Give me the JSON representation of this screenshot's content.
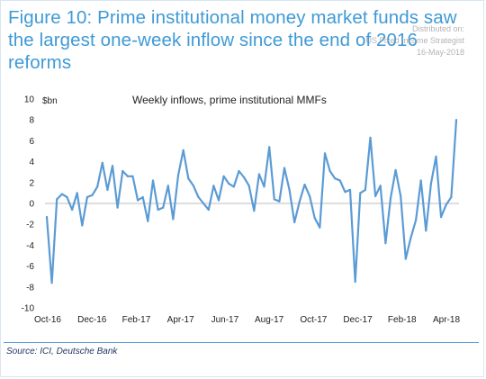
{
  "title": "Figure 10: Prime institutional money market funds saw the largest one-week inflow since the end of 2016 reforms",
  "watermark": [
    "Distributed on:",
    "US Fixed Income Strategist",
    "16-May-2018"
  ],
  "source": "Source: ICI, Deutsche Bank",
  "colors": {
    "title": "#3f9ad6",
    "line": "#5b9bd5",
    "rule": "#5b9bd5",
    "source": "#1f3864"
  },
  "chart_data": {
    "type": "line",
    "title": "Weekly inflows, prime institutional MMFs",
    "ylabel": "$bn",
    "xlabel": "",
    "ylim": [
      -10,
      10
    ],
    "yticks": [
      10,
      8,
      6,
      4,
      2,
      0,
      -2,
      -4,
      -6,
      -8,
      -10
    ],
    "xtick_labels": [
      "Oct-16",
      "Dec-16",
      "Feb-17",
      "Apr-17",
      "Jun-17",
      "Aug-17",
      "Oct-17",
      "Dec-17",
      "Feb-18",
      "Apr-18"
    ],
    "grid": false,
    "legend": "none",
    "series": [
      {
        "values": [
          -1.3,
          -7.6,
          0.4,
          0.9,
          0.6,
          -0.6,
          1.0,
          -2.1,
          0.6,
          0.8,
          1.6,
          3.9,
          1.3,
          3.6,
          -0.4,
          3.1,
          2.6,
          2.6,
          0.3,
          0.6,
          -1.7,
          2.2,
          -0.6,
          -0.4,
          1.7,
          -1.5,
          2.7,
          5.1,
          2.4,
          1.7,
          0.6,
          0.0,
          -0.6,
          1.7,
          0.3,
          2.6,
          1.9,
          1.6,
          3.1,
          2.5,
          1.7,
          -0.7,
          2.8,
          1.6,
          5.4,
          0.4,
          0.2,
          3.4,
          1.3,
          -1.8,
          0.2,
          1.8,
          0.7,
          -1.4,
          -2.3,
          4.8,
          3.1,
          2.4,
          2.2,
          1.1,
          1.3,
          -7.5,
          1.0,
          1.3,
          6.3,
          0.7,
          1.7,
          -3.8,
          0.5,
          3.2,
          0.7,
          -5.3,
          -3.3,
          -1.6,
          2.2,
          -2.6,
          1.9,
          4.5,
          -1.3,
          -0.1,
          0.6,
          8.0
        ]
      }
    ]
  }
}
